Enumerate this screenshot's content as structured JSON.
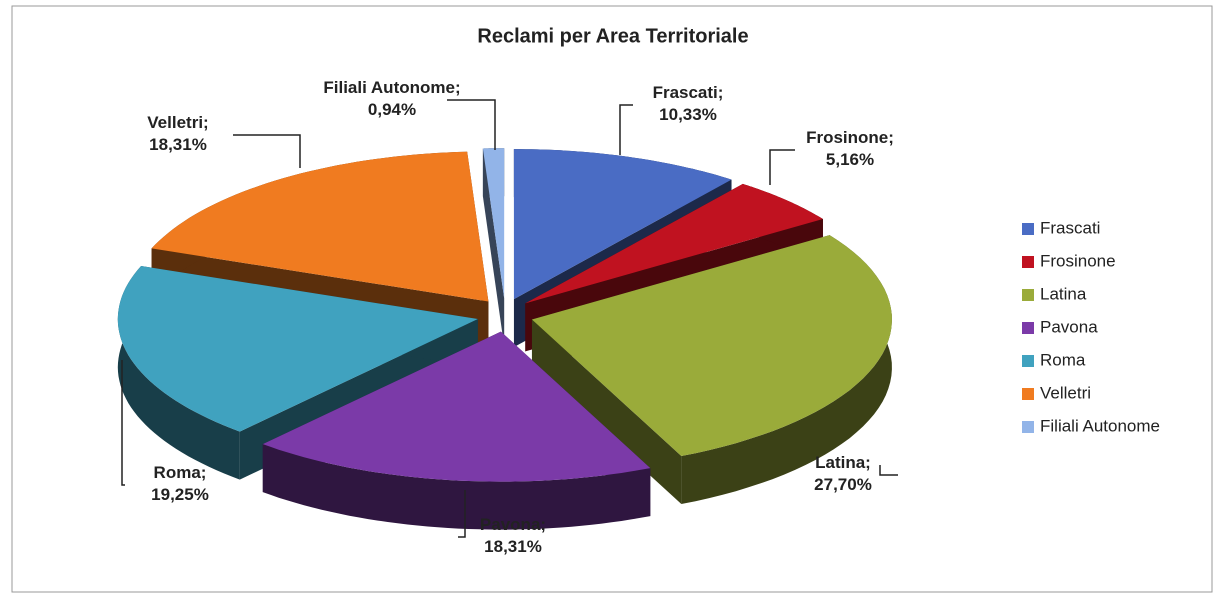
{
  "chart_data": {
    "type": "pie3d",
    "title": "Reclami per Area Territoriale",
    "categories": [
      "Frascati",
      "Frosinone",
      "Latina",
      "Pavona",
      "Roma",
      "Velletri",
      "Filiali Autonome"
    ],
    "values": [
      10.33,
      5.16,
      27.7,
      18.31,
      19.25,
      18.31,
      0.94
    ],
    "value_labels": [
      "Frascati; 10,33%",
      "Frosinone; 5,16%",
      "Latina; 27,70%",
      "Pavona; 18,31%",
      "Roma; 19,25%",
      "Velletri; 18,31%",
      "Filiali Autonome; 0,94%"
    ],
    "colors": [
      "#4a6cc4",
      "#c01220",
      "#9aab3a",
      "#7b3aa8",
      "#40a2bf",
      "#f07b20",
      "#92b4e8"
    ],
    "legend": "right"
  }
}
